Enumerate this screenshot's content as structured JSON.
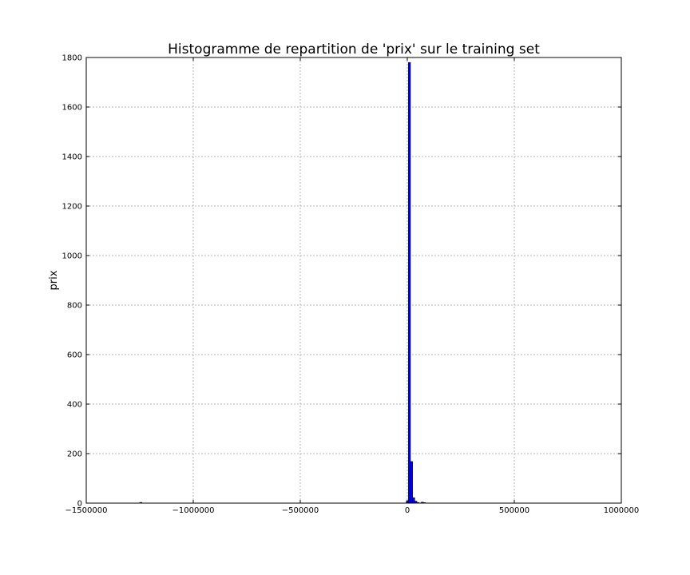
{
  "chart_data": {
    "type": "bar",
    "title": "Histogramme de repartition de 'prix' sur le training set",
    "xlabel": "",
    "ylabel": "prix",
    "xlim": [
      -1500000,
      1000000
    ],
    "ylim": [
      0,
      1800
    ],
    "grid": true,
    "bar_color": "#0000ff",
    "edge_color": "#000000",
    "x_ticks": [
      {
        "value": -1500000,
        "label": "−1500000"
      },
      {
        "value": -1000000,
        "label": "−1000000"
      },
      {
        "value": -500000,
        "label": "−500000"
      },
      {
        "value": 0,
        "label": "0"
      },
      {
        "value": 500000,
        "label": "500000"
      },
      {
        "value": 1000000,
        "label": "1000000"
      }
    ],
    "y_ticks": [
      {
        "value": 0,
        "label": "0"
      },
      {
        "value": 200,
        "label": "200"
      },
      {
        "value": 400,
        "label": "400"
      },
      {
        "value": 600,
        "label": "600"
      },
      {
        "value": 800,
        "label": "800"
      },
      {
        "value": 1000,
        "label": "1000"
      },
      {
        "value": 1200,
        "label": "1200"
      },
      {
        "value": 1400,
        "label": "1400"
      },
      {
        "value": 1600,
        "label": "1600"
      },
      {
        "value": 1800,
        "label": "1800"
      }
    ],
    "bins": [
      {
        "x0": -1250000,
        "x1": -1240000,
        "count": 3
      },
      {
        "x0": -5000,
        "x1": 5000,
        "count": 8
      },
      {
        "x0": 5000,
        "x1": 15000,
        "count": 1780
      },
      {
        "x0": 15000,
        "x1": 25000,
        "count": 168
      },
      {
        "x0": 25000,
        "x1": 35000,
        "count": 22
      },
      {
        "x0": 35000,
        "x1": 45000,
        "count": 8
      },
      {
        "x0": 45000,
        "x1": 55000,
        "count": 2
      },
      {
        "x0": 65000,
        "x1": 75000,
        "count": 4
      },
      {
        "x0": 75000,
        "x1": 85000,
        "count": 1
      }
    ]
  }
}
